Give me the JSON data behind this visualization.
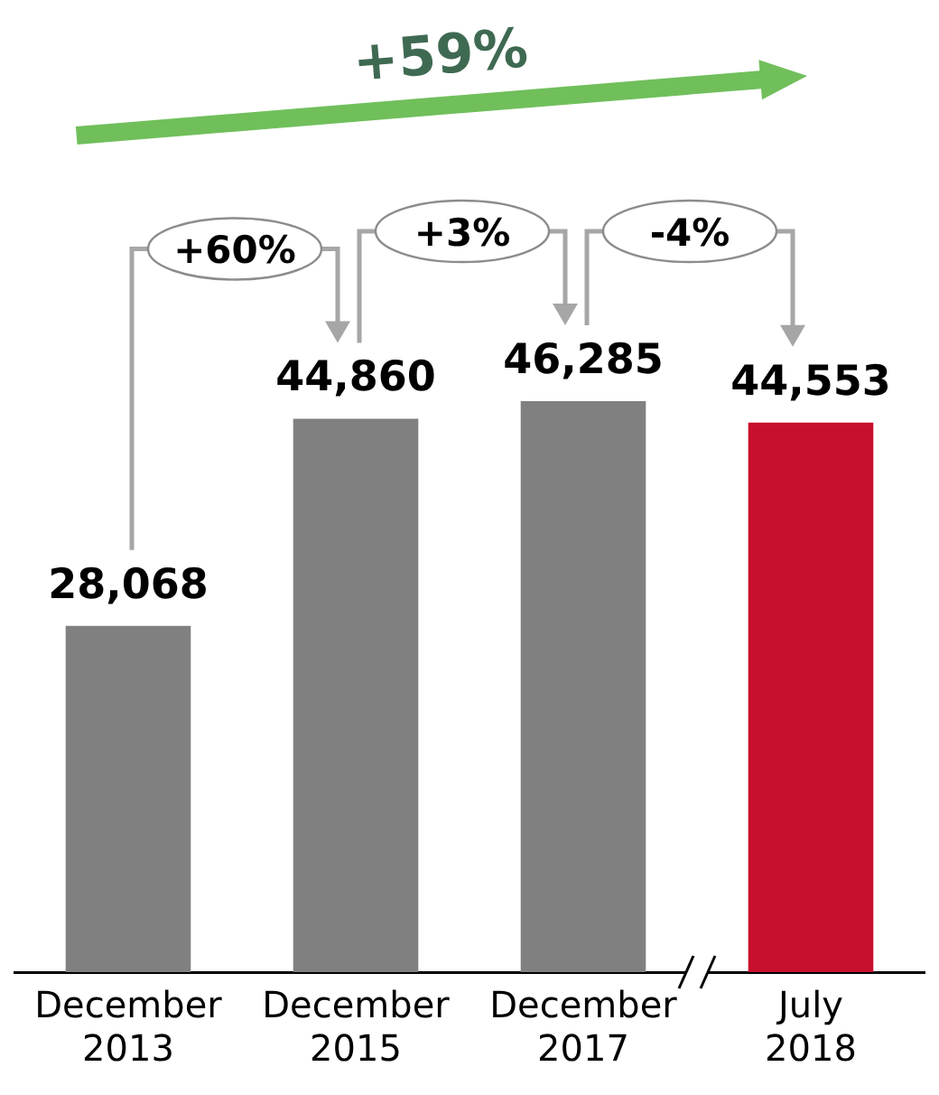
{
  "chart_data": {
    "type": "bar",
    "categories": [
      "December 2013",
      "December 2015",
      "December 2017",
      "July 2018"
    ],
    "values": [
      28068,
      44860,
      46285,
      44553
    ],
    "colors": [
      "#808080",
      "#808080",
      "#808080",
      "#c8102e"
    ],
    "value_labels": [
      "28,068",
      "44,860",
      "46,285",
      "44,553"
    ],
    "annotations": [
      "+59%",
      "+60%",
      "+3%",
      "-4%"
    ]
  }
}
